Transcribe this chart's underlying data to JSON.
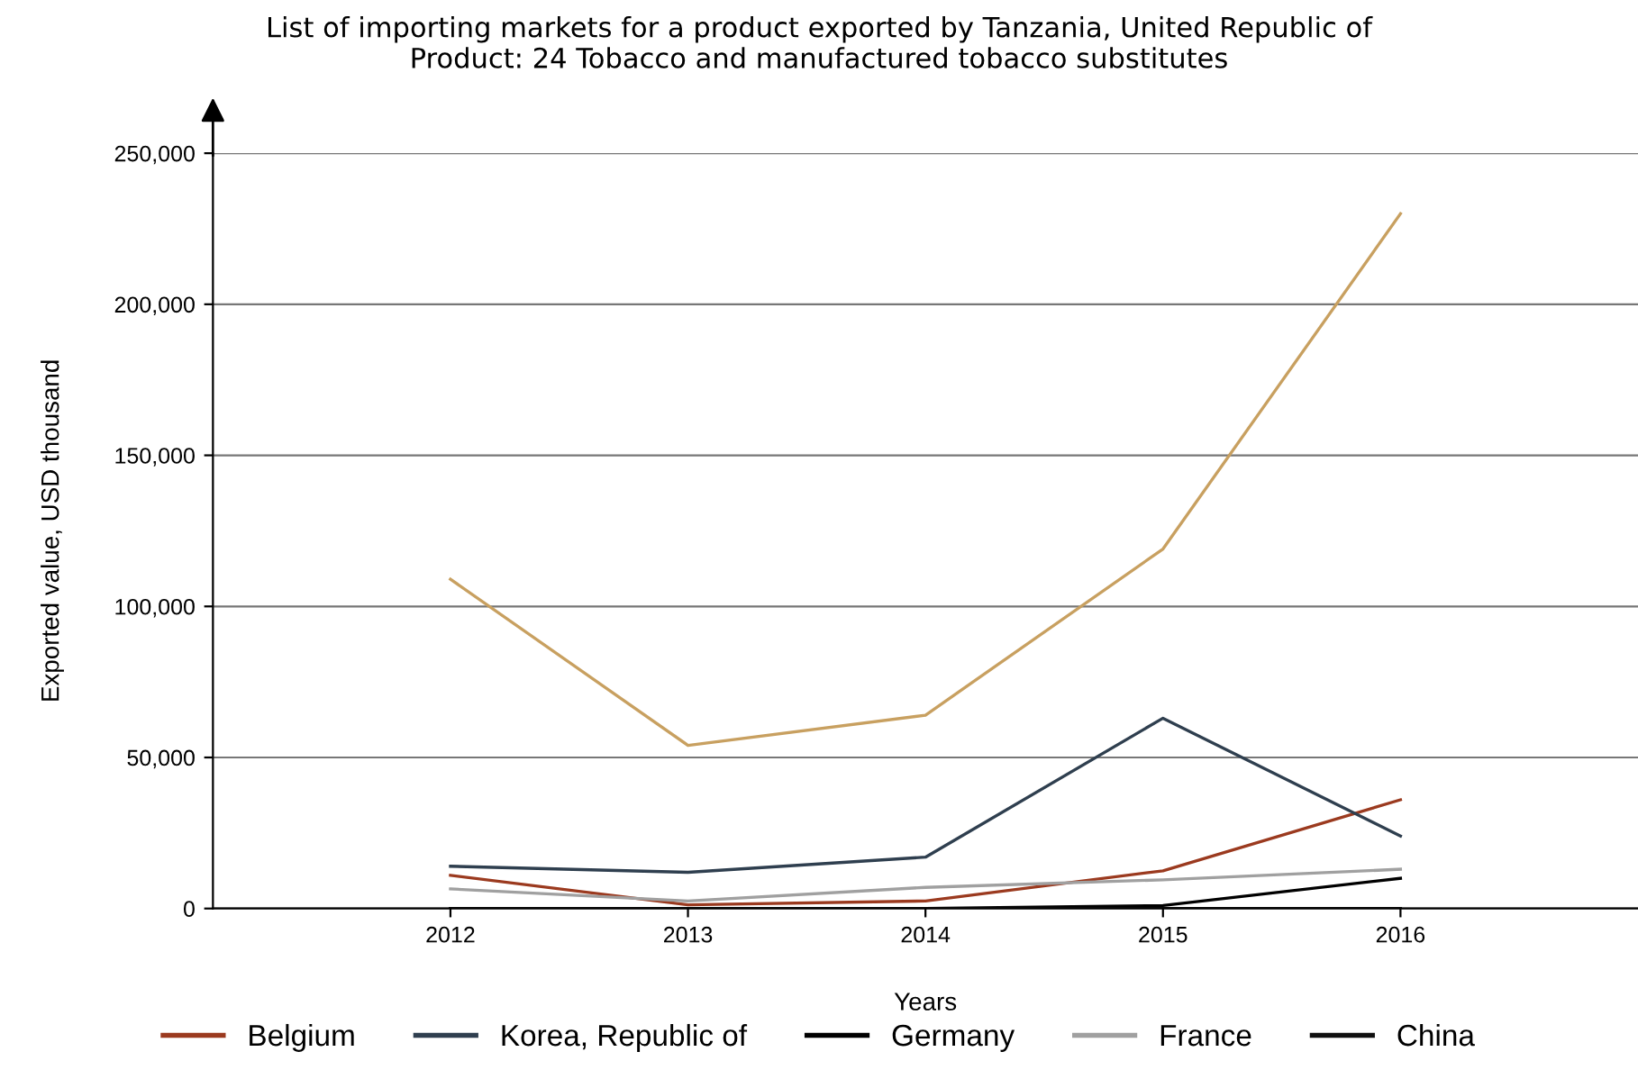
{
  "chart_data": {
    "type": "line",
    "title": "List of importing markets for a product exported by Tanzania, United Republic of\nProduct: 24 Tobacco and manufactured tobacco substitutes",
    "xlabel": "Years",
    "ylabel": "Exported value, USD thousand",
    "x": [
      2012,
      2013,
      2014,
      2015,
      2016
    ],
    "xlim": [
      2011,
      2017
    ],
    "xticks": [
      2012,
      2013,
      2014,
      2015,
      2016
    ],
    "ylim": [
      0,
      250000
    ],
    "yticks": [
      {
        "value": 0,
        "label": "0"
      },
      {
        "value": 50000,
        "label": "50,000"
      },
      {
        "value": 100000,
        "label": "100,000"
      },
      {
        "value": 150000,
        "label": "150,000"
      },
      {
        "value": 200000,
        "label": "200,000"
      },
      {
        "value": 250000,
        "label": "250,000"
      }
    ],
    "grid": "y",
    "legend": "bottom",
    "marker": "none",
    "line_style": "solid",
    "series": [
      {
        "color": "#c8a060",
        "values": [
          109000,
          54000,
          64000,
          119000,
          230000
        ]
      },
      {
        "name": "Belgium",
        "color": "#9b3a1f",
        "values": [
          11000,
          1200,
          2500,
          12500,
          36000
        ]
      },
      {
        "name": "Korea, Republic of",
        "color": "#2f3f4f",
        "values": [
          14000,
          12000,
          17000,
          63000,
          24000
        ]
      },
      {
        "name": "Germany",
        "color": "#000000",
        "values": [
          0,
          0,
          0,
          1000,
          10000
        ]
      },
      {
        "name": "France",
        "color": "#a0a0a0",
        "values": [
          6500,
          2500,
          7000,
          9500,
          13000
        ]
      },
      {
        "name": "China",
        "color": "#101010",
        "values": [
          0,
          0,
          0,
          0,
          0
        ]
      }
    ]
  }
}
